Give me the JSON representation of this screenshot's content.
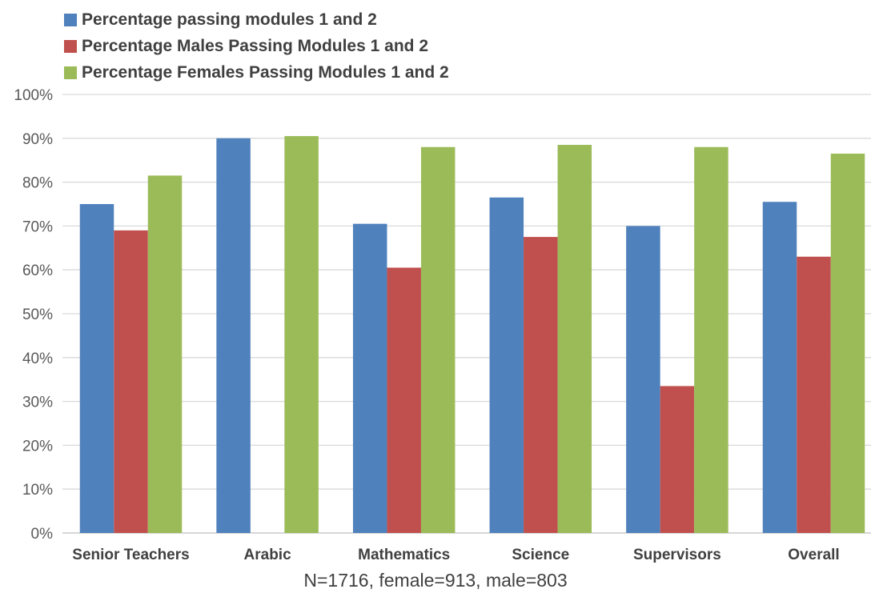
{
  "chart_data": {
    "type": "bar",
    "categories": [
      "Senior Teachers",
      "Arabic",
      "Mathematics",
      "Science",
      "Supervisors",
      "Overall"
    ],
    "series": [
      {
        "name": "Percentage passing modules 1 and 2",
        "color": "#4f81bd",
        "values": [
          75,
          90,
          70.5,
          76.5,
          70,
          75.5
        ]
      },
      {
        "name": "Percentage Males Passing Modules 1 and 2",
        "color": "#c0504d",
        "values": [
          69,
          null,
          60.5,
          67.5,
          33.5,
          63
        ]
      },
      {
        "name": "Percentage Females Passing Modules 1 and 2",
        "color": "#9bbb59",
        "values": [
          81.5,
          90.5,
          88,
          88.5,
          88,
          86.5
        ]
      }
    ],
    "ylim": [
      0,
      100
    ],
    "yticks": [
      0,
      10,
      20,
      30,
      40,
      50,
      60,
      70,
      80,
      90,
      100
    ],
    "ytick_format": "percent",
    "grid": true,
    "legend_position": "top-left",
    "xlabel": "N=1716, female=913, male=803",
    "ylabel": "",
    "title": ""
  },
  "colors": {
    "gridline": "#d9d9d9",
    "axis_text": "#595959",
    "category_text": "#404040"
  }
}
